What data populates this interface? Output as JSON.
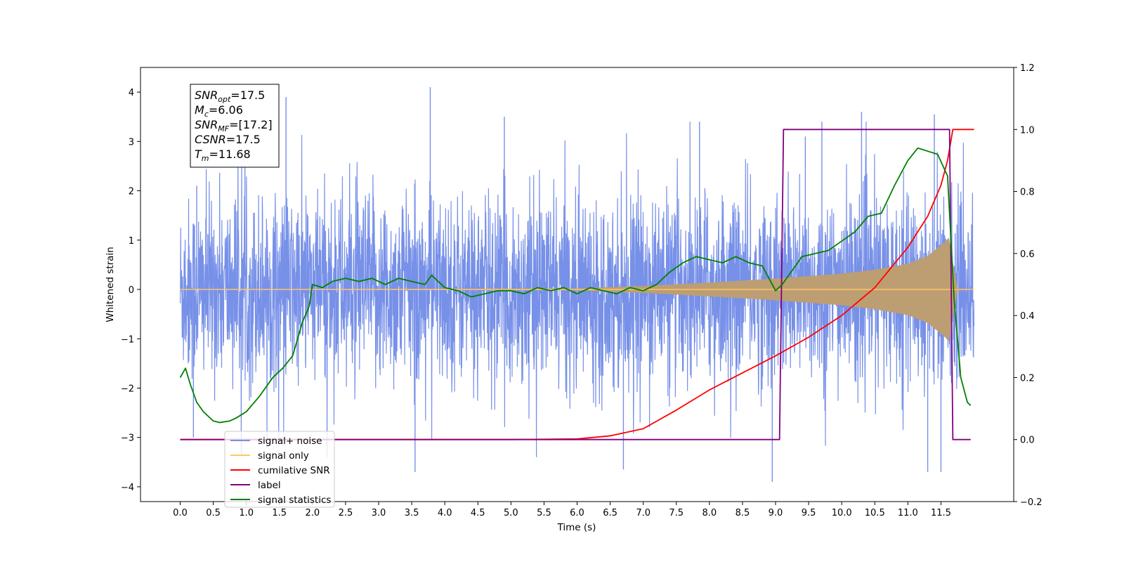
{
  "chart_data": {
    "type": "line",
    "xlabel": "Time (s)",
    "ylabel": "Whitened strain",
    "xlim": [
      -0.6,
      12.6
    ],
    "ylim": [
      -4.3,
      4.5
    ],
    "ylim_right": [
      -0.2,
      1.2
    ],
    "x_ticks": [
      "0.0",
      "0.5",
      "1.0",
      "1.5",
      "2.0",
      "2.5",
      "3.0",
      "3.5",
      "4.0",
      "4.5",
      "5.0",
      "5.5",
      "6.0",
      "6.5",
      "7.0",
      "7.5",
      "8.0",
      "8.5",
      "9.0",
      "9.5",
      "10.0",
      "10.5",
      "11.0",
      "11.5"
    ],
    "y_ticks_left": [
      "−4",
      "−3",
      "−2",
      "−1",
      "0",
      "1",
      "2",
      "3",
      "4"
    ],
    "y_ticks_right": [
      "−0.2",
      "0.0",
      "0.2",
      "0.4",
      "0.6",
      "0.8",
      "1.0",
      "1.2"
    ],
    "grid": false,
    "legend_position": "lower-left",
    "info_box": {
      "lines": [
        {
          "sym": "SNR",
          "sub": "opt",
          "val": "=17.5"
        },
        {
          "sym": "M",
          "sub": "c",
          "val": "=6.06"
        },
        {
          "sym": "SNR",
          "sub": "MF",
          "val": "=[17.2]"
        },
        {
          "sym": "CSNR",
          "sub": "",
          "val": "=17.5"
        },
        {
          "sym": "T",
          "sub": "m",
          "val": "=11.68"
        }
      ]
    },
    "series": [
      {
        "name": "signal+ noise",
        "color": "#7790e8",
        "axis": "left",
        "noise_envelope": {
          "x": [
            0.0,
            0.5,
            1.0,
            2.0,
            3.0,
            4.0,
            5.0,
            6.0,
            7.0,
            8.0,
            9.0,
            10.0,
            11.0,
            11.6,
            11.68,
            12.0
          ],
          "amp": [
            1.45,
            1.5,
            1.5,
            1.55,
            1.55,
            1.5,
            1.5,
            1.5,
            1.5,
            1.5,
            1.5,
            1.5,
            1.55,
            1.55,
            1.45,
            1.45
          ]
        },
        "peaks": [
          [
            0.25,
            2.1
          ],
          [
            1.6,
            3.9
          ],
          [
            3.78,
            4.1
          ],
          [
            4.9,
            3.5
          ],
          [
            6.7,
            -3.65
          ],
          [
            7.85,
            3.4
          ],
          [
            8.95,
            -3.9
          ],
          [
            9.7,
            3.4
          ],
          [
            10.3,
            3.6
          ],
          [
            11.3,
            -3.7
          ],
          [
            11.4,
            3.55
          ],
          [
            11.5,
            -3.7
          ],
          [
            3.55,
            -3.7
          ],
          [
            9.45,
            3.1
          ],
          [
            0.2,
            -3.0
          ]
        ]
      },
      {
        "name": "signal only",
        "color": "#ffc46a",
        "axis": "left",
        "envelope": {
          "x": [
            0.0,
            6.0,
            7.0,
            8.0,
            9.0,
            10.0,
            10.5,
            11.0,
            11.3,
            11.55,
            11.62,
            11.68,
            11.75,
            12.0
          ],
          "amp": [
            0.0,
            0.02,
            0.07,
            0.14,
            0.22,
            0.32,
            0.4,
            0.52,
            0.68,
            0.95,
            1.05,
            0.55,
            0.02,
            0.0
          ]
        }
      },
      {
        "name": "cumilative SNR",
        "color": "#ff0000",
        "axis": "right",
        "x": [
          0.0,
          5.0,
          6.0,
          6.5,
          7.0,
          7.5,
          8.0,
          8.5,
          9.0,
          9.5,
          10.0,
          10.5,
          11.0,
          11.3,
          11.5,
          11.6,
          11.68,
          12.0
        ],
        "y": [
          0.0,
          0.0,
          0.002,
          0.012,
          0.035,
          0.095,
          0.16,
          0.215,
          0.27,
          0.33,
          0.4,
          0.49,
          0.62,
          0.72,
          0.82,
          0.9,
          1.0,
          1.0
        ]
      },
      {
        "name": "label",
        "color": "#800080",
        "axis": "right",
        "x": [
          0.0,
          9.06,
          9.12,
          11.63,
          11.68,
          11.95
        ],
        "y": [
          0.0,
          0.0,
          1.0,
          1.0,
          0.0,
          0.0
        ]
      },
      {
        "name": "signal statistics",
        "color": "#008000",
        "axis": "right",
        "x": [
          0.0,
          0.08,
          0.15,
          0.25,
          0.35,
          0.5,
          0.6,
          0.75,
          0.85,
          1.0,
          1.2,
          1.4,
          1.55,
          1.7,
          1.85,
          1.95,
          2.0,
          2.15,
          2.3,
          2.5,
          2.7,
          2.9,
          3.1,
          3.3,
          3.5,
          3.7,
          3.8,
          4.0,
          4.2,
          4.4,
          4.6,
          4.8,
          5.0,
          5.2,
          5.4,
          5.6,
          5.8,
          6.0,
          6.2,
          6.4,
          6.6,
          6.8,
          7.0,
          7.2,
          7.4,
          7.6,
          7.8,
          8.0,
          8.2,
          8.4,
          8.6,
          8.8,
          9.0,
          9.1,
          9.2,
          9.4,
          9.6,
          9.8,
          10.0,
          10.2,
          10.4,
          10.6,
          10.8,
          11.0,
          11.15,
          11.3,
          11.45,
          11.6,
          11.7,
          11.8,
          11.9,
          11.95
        ],
        "y": [
          0.2,
          0.23,
          0.18,
          0.12,
          0.09,
          0.06,
          0.055,
          0.06,
          0.07,
          0.09,
          0.14,
          0.2,
          0.23,
          0.27,
          0.38,
          0.43,
          0.5,
          0.49,
          0.51,
          0.52,
          0.51,
          0.52,
          0.5,
          0.52,
          0.51,
          0.5,
          0.53,
          0.49,
          0.48,
          0.46,
          0.47,
          0.48,
          0.48,
          0.47,
          0.49,
          0.48,
          0.49,
          0.47,
          0.49,
          0.48,
          0.47,
          0.49,
          0.48,
          0.5,
          0.54,
          0.57,
          0.59,
          0.58,
          0.57,
          0.59,
          0.57,
          0.56,
          0.48,
          0.5,
          0.53,
          0.59,
          0.6,
          0.61,
          0.64,
          0.67,
          0.72,
          0.73,
          0.82,
          0.9,
          0.94,
          0.93,
          0.92,
          0.85,
          0.45,
          0.2,
          0.12,
          0.11
        ]
      }
    ]
  }
}
